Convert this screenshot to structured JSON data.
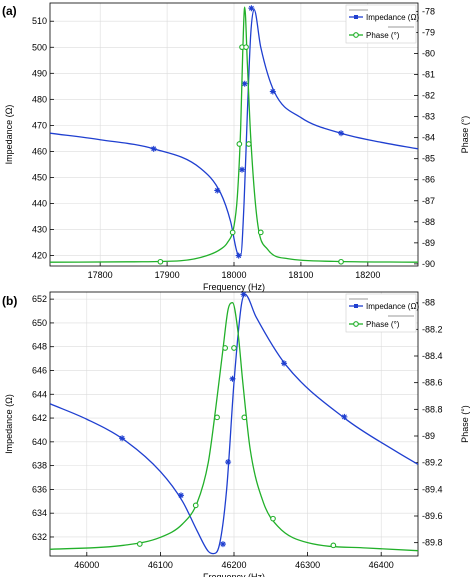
{
  "colors": {
    "impedance": "#1f3fd0",
    "phase": "#22b02a",
    "axis": "#000000",
    "grid": "#dcdcdc"
  },
  "chart_data": [
    {
      "type": "line",
      "panel_label": "(a)",
      "xlabel": "Frequency (Hz)",
      "ylabel_left": "Impedance (Ω)",
      "ylabel_right": "Phase (°)",
      "xlim": [
        17725,
        18275
      ],
      "ylim_left": [
        416,
        517
      ],
      "ylim_right": [
        -90.1,
        -77.6
      ],
      "x_ticks": [
        17800,
        17900,
        18000,
        18100,
        18200
      ],
      "y_left_ticks": [
        420,
        430,
        440,
        450,
        460,
        470,
        480,
        490,
        500,
        510
      ],
      "y_right_ticks": [
        -90,
        -89,
        -88,
        -87,
        -86,
        -85,
        -84,
        -83,
        -82,
        -81,
        -80,
        -79,
        -78
      ],
      "grid": true,
      "legend_position": "top-right",
      "series": [
        {
          "name": "Impedance (Ω)",
          "axis": "left",
          "marker": "star",
          "x": [
            17725,
            17800,
            17880,
            17950,
            17980,
            17995,
            18005,
            18010,
            18015,
            18020,
            18025,
            18030,
            18040,
            18060,
            18100,
            18160,
            18220,
            18275
          ],
          "y": [
            467.0,
            464.5,
            461.0,
            453.5,
            444.0,
            433.0,
            421.0,
            420.0,
            440.0,
            475.0,
            505.0,
            514.5,
            500.0,
            483.0,
            473.0,
            467.0,
            463.5,
            461.0
          ],
          "marker_x": [
            17880,
            17975,
            18007,
            18012,
            18016,
            18026,
            18058,
            18160
          ],
          "marker_y": [
            461.0,
            445.0,
            420.0,
            453.0,
            486.0,
            515.0,
            483.0,
            467.0
          ]
        },
        {
          "name": "Phase (°)",
          "axis": "right",
          "marker": "circle",
          "x": [
            17725,
            17850,
            17920,
            17960,
            17980,
            17990,
            18000,
            18005,
            18010,
            18013,
            18016,
            18020,
            18025,
            18035,
            18050,
            18080,
            18150,
            18275
          ],
          "y": [
            -89.92,
            -89.9,
            -89.85,
            -89.6,
            -89.3,
            -89.0,
            -88.2,
            -86.8,
            -83.5,
            -80.0,
            -77.8,
            -80.5,
            -84.0,
            -88.0,
            -89.3,
            -89.75,
            -89.88,
            -89.92
          ],
          "marker_x": [
            17890,
            17998,
            18008,
            18012,
            18018,
            18022,
            18040,
            18160
          ],
          "marker_y": [
            -89.9,
            -88.5,
            -84.3,
            -79.7,
            -79.7,
            -84.3,
            -88.5,
            -89.9
          ]
        }
      ]
    },
    {
      "type": "line",
      "panel_label": "(b)",
      "xlabel": "Frequency (Hz)",
      "ylabel_left": "Impedance (Ω)",
      "ylabel_right": "Phase (°)",
      "xlim": [
        45950,
        46450
      ],
      "ylim_left": [
        630.4,
        652.6
      ],
      "ylim_right": [
        -89.9,
        -87.92
      ],
      "x_ticks": [
        46000,
        46100,
        46200,
        46300,
        46400
      ],
      "y_left_ticks": [
        632,
        634,
        636,
        638,
        640,
        642,
        644,
        646,
        648,
        650,
        652
      ],
      "y_right_ticks": [
        -89.8,
        -89.6,
        -89.4,
        -89.2,
        -89.0,
        -88.8,
        -88.6,
        -88.4,
        -88.2,
        -88.0
      ],
      "grid": true,
      "legend_position": "top-right",
      "series": [
        {
          "name": "Impedance (Ω)",
          "axis": "left",
          "marker": "star",
          "x": [
            45950,
            46000,
            46050,
            46100,
            46130,
            46150,
            46165,
            46172,
            46180,
            46190,
            46200,
            46210,
            46215,
            46230,
            46270,
            46350,
            46420,
            46450
          ],
          "y": [
            643.2,
            641.9,
            640.2,
            637.5,
            635.0,
            632.5,
            630.8,
            630.6,
            631.3,
            636.0,
            645.0,
            651.5,
            652.4,
            650.5,
            646.5,
            642.0,
            639.2,
            638.1
          ],
          "marker_x": [
            46048,
            46128,
            46185,
            46192,
            46198,
            46213,
            46268,
            46350
          ],
          "marker_y": [
            640.3,
            635.5,
            631.4,
            638.3,
            645.3,
            652.4,
            646.6,
            642.1
          ],
          "marker_note": ""
        },
        {
          "name": "Phase (°)",
          "axis": "right",
          "marker": "circle",
          "x": [
            45950,
            46050,
            46100,
            46130,
            46150,
            46165,
            46175,
            46185,
            46192,
            46198,
            46205,
            46212,
            46222,
            46240,
            46260,
            46300,
            46380,
            46450
          ],
          "y": [
            -89.85,
            -89.82,
            -89.76,
            -89.66,
            -89.5,
            -89.2,
            -88.8,
            -88.35,
            -88.05,
            -88.0,
            -88.2,
            -88.6,
            -89.1,
            -89.5,
            -89.68,
            -89.8,
            -89.84,
            -89.86
          ],
          "marker_x": [
            46072,
            46148,
            46177,
            46188,
            46200,
            46214,
            46253,
            46335
          ],
          "marker_y": [
            -89.81,
            -89.52,
            -88.86,
            -88.34,
            -88.34,
            -88.86,
            -89.62,
            -89.82
          ]
        }
      ]
    }
  ]
}
